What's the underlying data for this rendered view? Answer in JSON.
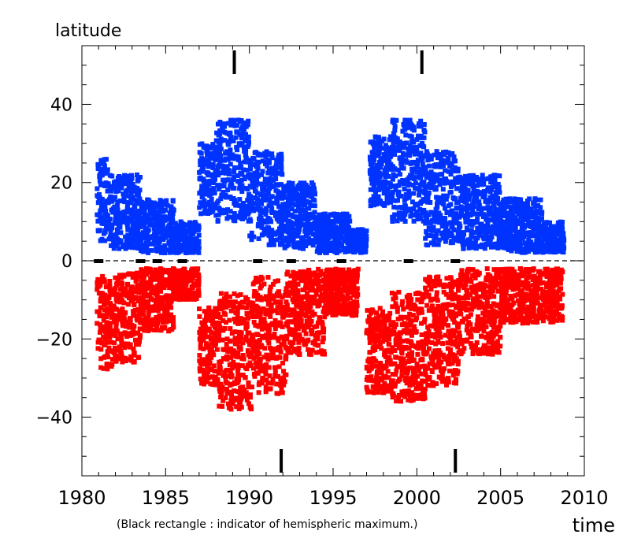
{
  "chart_data": {
    "type": "scatter",
    "ylabel": "latitude",
    "xlabel": "time",
    "annotation": "(Black rectangle : indicator of hemispheric maximum.)",
    "xlim": [
      1980,
      2010
    ],
    "ylim": [
      -55,
      55
    ],
    "xticks": [
      1980,
      1985,
      1990,
      1995,
      2000,
      2005,
      2010
    ],
    "yticks": [
      -40,
      -20,
      0,
      20,
      40
    ],
    "grid": false,
    "series": [
      {
        "color": "#0033ff",
        "hemisphere": "north",
        "clusters": [
          {
            "x": [
              1980.9,
              1981.6
            ],
            "y": [
              5,
              26
            ]
          },
          {
            "x": [
              1981.6,
              1983.5
            ],
            "y": [
              3,
              22
            ]
          },
          {
            "x": [
              1983.5,
              1985.5
            ],
            "y": [
              2,
              16
            ]
          },
          {
            "x": [
              1985.5,
              1987.0
            ],
            "y": [
              2,
              10
            ]
          },
          {
            "x": [
              1987.0,
              1988.0
            ],
            "y": [
              12,
              30
            ]
          },
          {
            "x": [
              1988.0,
              1990.0
            ],
            "y": [
              10,
              36
            ]
          },
          {
            "x": [
              1990.0,
              1992.0
            ],
            "y": [
              4,
              28
            ]
          },
          {
            "x": [
              1992.0,
              1994.0
            ],
            "y": [
              3,
              20
            ]
          },
          {
            "x": [
              1994.0,
              1996.0
            ],
            "y": [
              2,
              12
            ]
          },
          {
            "x": [
              1996.0,
              1997.0
            ],
            "y": [
              2,
              8
            ]
          },
          {
            "x": [
              1997.2,
              1998.5
            ],
            "y": [
              14,
              32
            ]
          },
          {
            "x": [
              1998.5,
              2000.5
            ],
            "y": [
              10,
              36
            ]
          },
          {
            "x": [
              2000.5,
              2002.5
            ],
            "y": [
              4,
              28
            ]
          },
          {
            "x": [
              2002.5,
              2005.0
            ],
            "y": [
              3,
              22
            ]
          },
          {
            "x": [
              2005.0,
              2007.5
            ],
            "y": [
              2,
              16
            ]
          },
          {
            "x": [
              2007.5,
              2008.8
            ],
            "y": [
              2,
              10
            ]
          }
        ]
      },
      {
        "color": "#ff0000",
        "hemisphere": "south",
        "clusters": [
          {
            "x": [
              1980.9,
              1982.0
            ],
            "y": [
              -28,
              -4
            ]
          },
          {
            "x": [
              1982.0,
              1983.5
            ],
            "y": [
              -26,
              -3
            ]
          },
          {
            "x": [
              1983.5,
              1985.5
            ],
            "y": [
              -18,
              -2
            ]
          },
          {
            "x": [
              1985.5,
              1987.0
            ],
            "y": [
              -10,
              -2
            ]
          },
          {
            "x": [
              1987.0,
              1988.2
            ],
            "y": [
              -32,
              -12
            ]
          },
          {
            "x": [
              1988.2,
              1990.2
            ],
            "y": [
              -38,
              -8
            ]
          },
          {
            "x": [
              1990.2,
              1992.2
            ],
            "y": [
              -34,
              -4
            ]
          },
          {
            "x": [
              1992.2,
              1994.5
            ],
            "y": [
              -24,
              -2
            ]
          },
          {
            "x": [
              1994.5,
              1996.5
            ],
            "y": [
              -14,
              -2
            ]
          },
          {
            "x": [
              1997.0,
              1998.5
            ],
            "y": [
              -34,
              -12
            ]
          },
          {
            "x": [
              1998.5,
              2000.5
            ],
            "y": [
              -36,
              -8
            ]
          },
          {
            "x": [
              2000.5,
              2002.5
            ],
            "y": [
              -32,
              -4
            ]
          },
          {
            "x": [
              2002.5,
              2005.0
            ],
            "y": [
              -24,
              -2
            ]
          },
          {
            "x": [
              2005.0,
              2008.7
            ],
            "y": [
              -16,
              -2
            ]
          }
        ]
      }
    ],
    "hemispheric_maxima": {
      "north": [
        1989.1,
        2000.3
      ],
      "south": [
        1991.9,
        2002.3
      ]
    },
    "zero_line_markers": [
      1981.0,
      1983.5,
      1984.5,
      1986.0,
      1990.5,
      1992.5,
      1995.5,
      1999.5,
      2002.3
    ]
  }
}
